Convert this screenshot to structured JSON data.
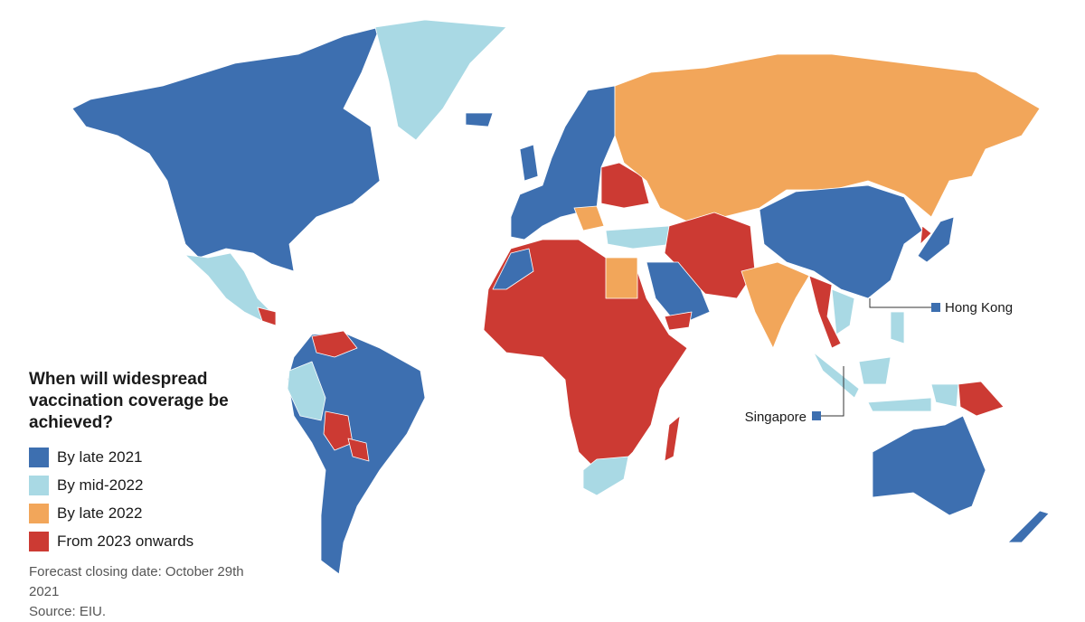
{
  "title": "When will widespread vaccination coverage be achieved?",
  "legend": [
    {
      "label": "By late 2021",
      "color": "#3d6fb0"
    },
    {
      "label": "By mid-2022",
      "color": "#a9d9e4"
    },
    {
      "label": "By late 2022",
      "color": "#f2a65a"
    },
    {
      "label": "From 2023 onwards",
      "color": "#cc3a33"
    }
  ],
  "callouts": {
    "hong_kong": "Hong Kong",
    "singapore": "Singapore"
  },
  "note": "Forecast closing date: October 29th 2021",
  "source": "Source: EIU."
}
